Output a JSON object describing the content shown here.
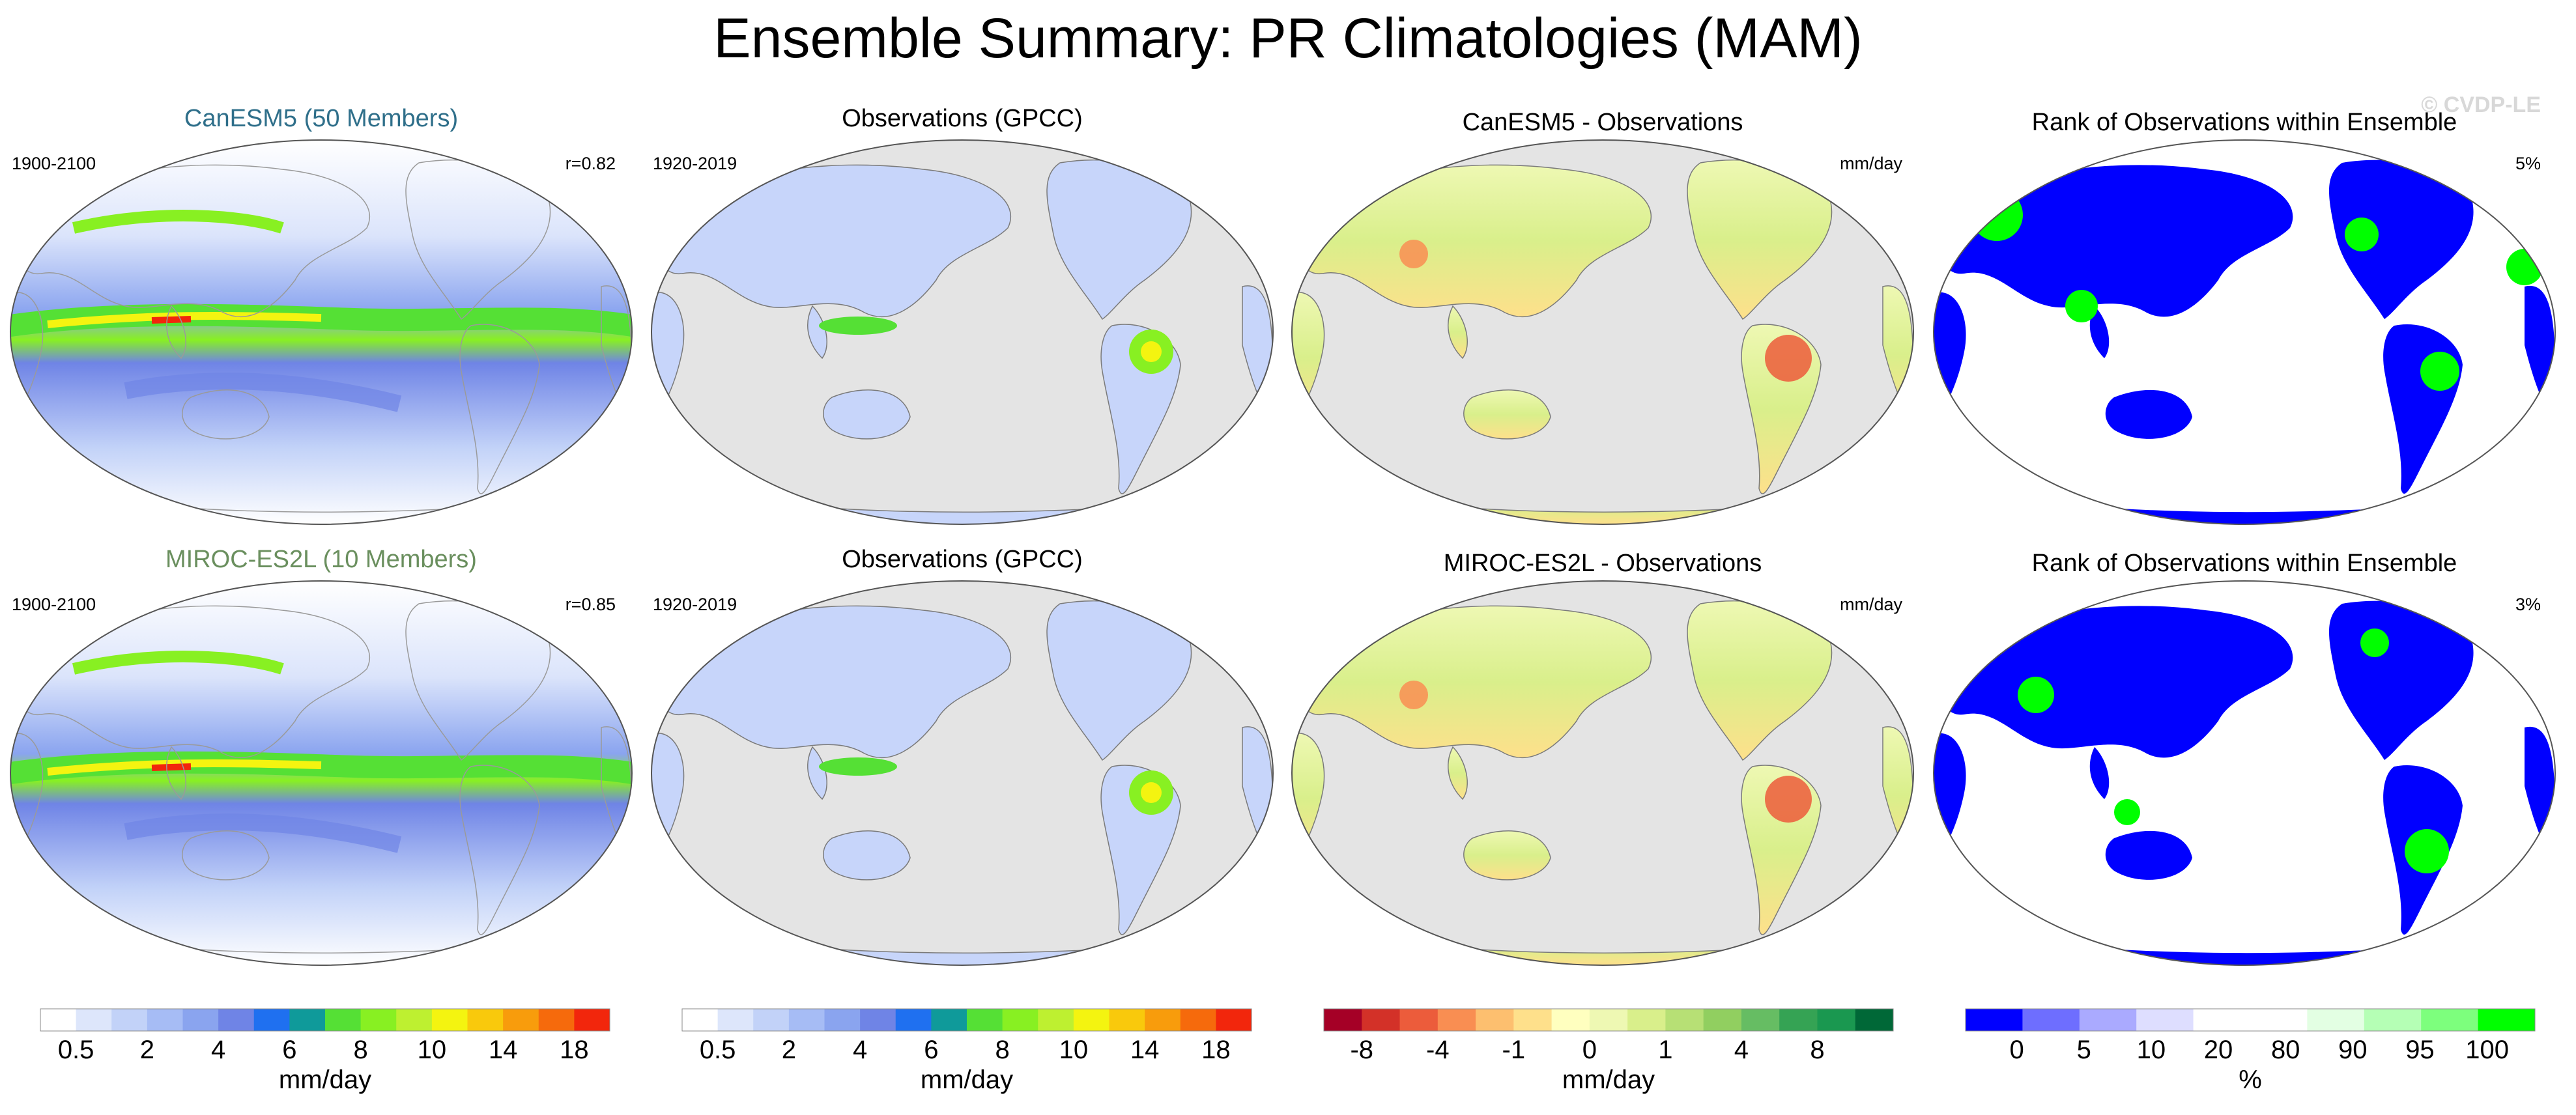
{
  "page": {
    "title": "Ensemble Summary: PR Climatologies (MAM)",
    "watermark": "© CVDP-LE"
  },
  "chart_data": {
    "type": "map-panels",
    "rows": [
      {
        "model_title": "CanESM5 (50 Members)",
        "model_title_color": "#2f6f8a",
        "model_period": "1900-2100",
        "model_corr": "r=0.82",
        "obs_title": "Observations (GPCC)",
        "obs_period": "1920-2019",
        "diff_title": "CanESM5 - Observations",
        "diff_units": "mm/day",
        "rank_title": "Rank of Observations within Ensemble",
        "rank_pct": "5%"
      },
      {
        "model_title": "MIROC-ES2L (10 Members)",
        "model_title_color": "#6a8f5e",
        "model_period": "1900-2100",
        "model_corr": "r=0.85",
        "obs_title": "Observations (GPCC)",
        "obs_period": "1920-2019",
        "diff_title": "MIROC-ES2L - Observations",
        "diff_units": "mm/day",
        "rank_title": "Rank of Observations within Ensemble",
        "rank_pct": "3%"
      }
    ],
    "colorbars": [
      {
        "name": "precip-model",
        "colors": [
          "#ffffff",
          "#dde6fb",
          "#c2d2f8",
          "#a6bcf5",
          "#8aa4ef",
          "#6f84e6",
          "#1f70f0",
          "#0f9a9a",
          "#55e035",
          "#88f022",
          "#bef030",
          "#f4f410",
          "#f9c90c",
          "#f89c0c",
          "#f66a0c",
          "#f2260c"
        ],
        "ticks": [
          "0.5",
          "2",
          "4",
          "6",
          "8",
          "10",
          "14",
          "18"
        ],
        "label": "mm/day"
      },
      {
        "name": "precip-obs",
        "colors": [
          "#ffffff",
          "#dde6fb",
          "#c2d2f8",
          "#a6bcf5",
          "#8aa4ef",
          "#6f84e6",
          "#1f70f0",
          "#0f9a9a",
          "#55e035",
          "#88f022",
          "#bef030",
          "#f4f410",
          "#f9c90c",
          "#f89c0c",
          "#f66a0c",
          "#f2260c"
        ],
        "ticks": [
          "0.5",
          "2",
          "4",
          "6",
          "8",
          "10",
          "14",
          "18"
        ],
        "label": "mm/day"
      },
      {
        "name": "difference",
        "colors": [
          "#a50026",
          "#d33128",
          "#ec5c3b",
          "#f98e52",
          "#fdbf6f",
          "#fee08b",
          "#ffffbf",
          "#eef8b3",
          "#d9ef8b",
          "#b7e075",
          "#91cf60",
          "#66bd63",
          "#35a354",
          "#1a9850",
          "#006837"
        ],
        "ticks": [
          "-8",
          "-4",
          "-1",
          "0",
          "1",
          "4",
          "8"
        ],
        "label": "mm/day"
      },
      {
        "name": "rank",
        "colors": [
          "#0000ff",
          "#6e6eff",
          "#aaaaff",
          "#dedeff",
          "#ffffff",
          "#ffffff",
          "#e3ffe3",
          "#b5ffb5",
          "#7dff7d",
          "#00ff00"
        ],
        "ticks": [
          "0",
          "5",
          "10",
          "20",
          "80",
          "90",
          "95",
          "100"
        ],
        "label": "%"
      }
    ]
  }
}
